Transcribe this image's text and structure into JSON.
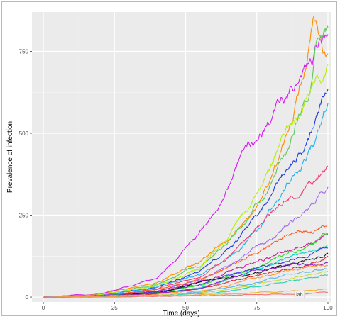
{
  "chart_data": {
    "type": "line",
    "title": "",
    "xlabel": "Time (days)",
    "ylabel": "Prevalence of infection",
    "xlim": [
      -4,
      101
    ],
    "ylim": [
      -15,
      870
    ],
    "x_ticks": [
      0,
      25,
      50,
      75,
      100
    ],
    "y_ticks": [
      0,
      250,
      500,
      750
    ],
    "x_tick_labels": [
      "0",
      "25",
      "50",
      "75",
      "100"
    ],
    "y_tick_labels": [
      "0",
      "250",
      "500",
      "750"
    ],
    "grid": true,
    "legend": "none",
    "panel_color": "#ebebeb",
    "grid_color": "#ffffff",
    "annotations": [
      {
        "text": "lab",
        "x": 90,
        "y": 8
      }
    ],
    "series": [
      {
        "color": "#ff8c00",
        "points": [
          [
            0,
            0
          ],
          [
            20,
            8
          ],
          [
            40,
            45
          ],
          [
            55,
            110
          ],
          [
            65,
            170
          ],
          [
            75,
            270
          ],
          [
            85,
            470
          ],
          [
            92,
            720
          ],
          [
            95,
            850
          ],
          [
            100,
            720
          ]
        ]
      },
      {
        "color": "#d21ef0",
        "points": [
          [
            0,
            0
          ],
          [
            20,
            8
          ],
          [
            40,
            55
          ],
          [
            50,
            150
          ],
          [
            60,
            250
          ],
          [
            70,
            420
          ],
          [
            80,
            560
          ],
          [
            90,
            660
          ],
          [
            100,
            820
          ]
        ]
      },
      {
        "color": "#5ac85a",
        "points": [
          [
            0,
            0
          ],
          [
            20,
            6
          ],
          [
            40,
            40
          ],
          [
            55,
            100
          ],
          [
            65,
            160
          ],
          [
            75,
            280
          ],
          [
            85,
            430
          ],
          [
            93,
            640
          ],
          [
            96,
            790
          ],
          [
            100,
            830
          ]
        ]
      },
      {
        "color": "#b4f000",
        "points": [
          [
            0,
            0
          ],
          [
            20,
            6
          ],
          [
            40,
            35
          ],
          [
            55,
            90
          ],
          [
            65,
            180
          ],
          [
            75,
            300
          ],
          [
            85,
            480
          ],
          [
            95,
            630
          ],
          [
            100,
            700
          ]
        ]
      },
      {
        "color": "#1e3cdc",
        "points": [
          [
            0,
            0
          ],
          [
            20,
            5
          ],
          [
            40,
            30
          ],
          [
            55,
            80
          ],
          [
            65,
            140
          ],
          [
            75,
            250
          ],
          [
            85,
            370
          ],
          [
            95,
            510
          ],
          [
            100,
            650
          ]
        ]
      },
      {
        "color": "#1eb4f0",
        "points": [
          [
            0,
            0
          ],
          [
            20,
            5
          ],
          [
            40,
            30
          ],
          [
            55,
            70
          ],
          [
            65,
            120
          ],
          [
            75,
            200
          ],
          [
            85,
            330
          ],
          [
            95,
            470
          ],
          [
            100,
            600
          ]
        ]
      },
      {
        "color": "#f03c78",
        "points": [
          [
            0,
            0
          ],
          [
            20,
            4
          ],
          [
            40,
            25
          ],
          [
            55,
            60
          ],
          [
            65,
            120
          ],
          [
            75,
            210
          ],
          [
            85,
            300
          ],
          [
            95,
            360
          ],
          [
            100,
            410
          ]
        ]
      },
      {
        "color": "#a06cf0",
        "points": [
          [
            0,
            0
          ],
          [
            20,
            4
          ],
          [
            40,
            20
          ],
          [
            55,
            50
          ],
          [
            65,
            95
          ],
          [
            75,
            150
          ],
          [
            85,
            210
          ],
          [
            95,
            280
          ],
          [
            100,
            335
          ]
        ]
      },
      {
        "color": "#ff5a1e",
        "points": [
          [
            0,
            0
          ],
          [
            20,
            4
          ],
          [
            40,
            22
          ],
          [
            55,
            55
          ],
          [
            65,
            90
          ],
          [
            75,
            140
          ],
          [
            85,
            180
          ],
          [
            95,
            200
          ],
          [
            100,
            220
          ]
        ]
      },
      {
        "color": "#c81e96",
        "points": [
          [
            0,
            0
          ],
          [
            20,
            3
          ],
          [
            40,
            18
          ],
          [
            55,
            45
          ],
          [
            65,
            75
          ],
          [
            75,
            110
          ],
          [
            85,
            140
          ],
          [
            95,
            170
          ],
          [
            100,
            200
          ]
        ]
      },
      {
        "color": "#32dc32",
        "points": [
          [
            0,
            0
          ],
          [
            20,
            3
          ],
          [
            40,
            15
          ],
          [
            55,
            35
          ],
          [
            65,
            60
          ],
          [
            75,
            90
          ],
          [
            85,
            130
          ],
          [
            95,
            165
          ],
          [
            100,
            190
          ]
        ]
      },
      {
        "color": "#00d2c8",
        "points": [
          [
            0,
            0
          ],
          [
            20,
            2
          ],
          [
            40,
            12
          ],
          [
            55,
            30
          ],
          [
            65,
            55
          ],
          [
            75,
            85
          ],
          [
            85,
            115
          ],
          [
            95,
            145
          ],
          [
            100,
            165
          ]
        ]
      },
      {
        "color": "#3c3cdc",
        "points": [
          [
            0,
            0
          ],
          [
            20,
            3
          ],
          [
            40,
            15
          ],
          [
            55,
            40
          ],
          [
            65,
            70
          ],
          [
            75,
            90
          ],
          [
            85,
            110
          ],
          [
            95,
            130
          ],
          [
            100,
            145
          ]
        ]
      },
      {
        "color": "#14141e",
        "points": [
          [
            0,
            0
          ],
          [
            20,
            2
          ],
          [
            40,
            12
          ],
          [
            55,
            45
          ],
          [
            65,
            60
          ],
          [
            75,
            75
          ],
          [
            85,
            95
          ],
          [
            95,
            115
          ],
          [
            100,
            130
          ]
        ]
      },
      {
        "color": "#dc2828",
        "points": [
          [
            0,
            0
          ],
          [
            20,
            2
          ],
          [
            40,
            10
          ],
          [
            55,
            25
          ],
          [
            65,
            45
          ],
          [
            75,
            65
          ],
          [
            85,
            85
          ],
          [
            95,
            105
          ],
          [
            100,
            120
          ]
        ]
      },
      {
        "color": "#8c28c8",
        "points": [
          [
            0,
            0
          ],
          [
            20,
            2
          ],
          [
            40,
            10
          ],
          [
            55,
            28
          ],
          [
            65,
            55
          ],
          [
            75,
            80
          ],
          [
            85,
            95
          ],
          [
            95,
            100
          ],
          [
            100,
            105
          ]
        ]
      },
      {
        "color": "#ff9a3c",
        "points": [
          [
            0,
            0
          ],
          [
            20,
            2
          ],
          [
            40,
            8
          ],
          [
            55,
            20
          ],
          [
            65,
            35
          ],
          [
            75,
            55
          ],
          [
            85,
            75
          ],
          [
            95,
            90
          ],
          [
            100,
            95
          ]
        ]
      },
      {
        "color": "#5ab4f0",
        "points": [
          [
            0,
            0
          ],
          [
            20,
            1
          ],
          [
            40,
            6
          ],
          [
            55,
            15
          ],
          [
            65,
            28
          ],
          [
            75,
            45
          ],
          [
            85,
            65
          ],
          [
            95,
            80
          ],
          [
            100,
            85
          ]
        ]
      },
      {
        "color": "#c8dc3c",
        "points": [
          [
            0,
            0
          ],
          [
            20,
            1
          ],
          [
            40,
            5
          ],
          [
            55,
            12
          ],
          [
            65,
            22
          ],
          [
            75,
            38
          ],
          [
            85,
            55
          ],
          [
            95,
            70
          ],
          [
            100,
            80
          ]
        ]
      },
      {
        "color": "#28d2b4",
        "points": [
          [
            0,
            0
          ],
          [
            20,
            1
          ],
          [
            40,
            4
          ],
          [
            55,
            10
          ],
          [
            65,
            18
          ],
          [
            75,
            32
          ],
          [
            85,
            48
          ],
          [
            95,
            62
          ],
          [
            100,
            68
          ]
        ]
      },
      {
        "color": "#f0b428",
        "points": [
          [
            0,
            0
          ],
          [
            20,
            1
          ],
          [
            40,
            3
          ],
          [
            55,
            6
          ],
          [
            65,
            10
          ],
          [
            75,
            14
          ],
          [
            85,
            18
          ],
          [
            95,
            22
          ],
          [
            100,
            24
          ]
        ]
      },
      {
        "color": "#f07878",
        "points": [
          [
            0,
            0
          ],
          [
            20,
            0
          ],
          [
            40,
            2
          ],
          [
            55,
            4
          ],
          [
            65,
            6
          ],
          [
            75,
            8
          ],
          [
            85,
            10
          ],
          [
            95,
            12
          ],
          [
            100,
            14
          ]
        ]
      }
    ]
  }
}
